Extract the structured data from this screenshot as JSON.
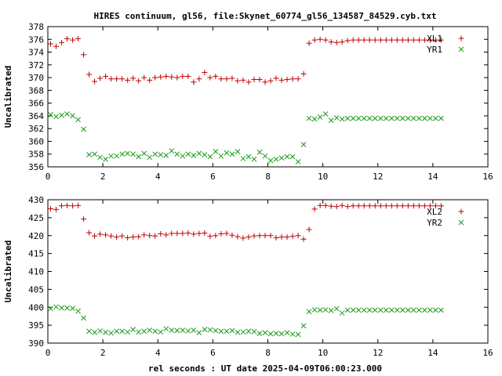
{
  "title": "HIRES continuum, gl56, file:Skynet_60774_gl56_134587_84529.cyb.txt",
  "xlabel": "rel seconds : UT date 2025-04-09T06:00:23.000",
  "colors": {
    "series_a": "#c00000",
    "series_b": "#1a9a1a",
    "axis": "#000000"
  },
  "chart_data": [
    {
      "type": "scatter",
      "ylabel": "Uncalibrated",
      "xlim": [
        0,
        16
      ],
      "ylim": [
        356,
        378
      ],
      "xticks": [
        0,
        2,
        4,
        6,
        8,
        10,
        12,
        14,
        16
      ],
      "yticks": [
        356,
        358,
        360,
        362,
        364,
        366,
        368,
        370,
        372,
        374,
        376,
        378
      ],
      "legend_position": "top-right",
      "x": [
        0.1,
        0.3,
        0.5,
        0.7,
        0.9,
        1.1,
        1.3,
        1.5,
        1.7,
        1.9,
        2.1,
        2.3,
        2.5,
        2.7,
        2.9,
        3.1,
        3.3,
        3.5,
        3.7,
        3.9,
        4.1,
        4.3,
        4.5,
        4.7,
        4.9,
        5.1,
        5.3,
        5.5,
        5.7,
        5.9,
        6.1,
        6.3,
        6.5,
        6.7,
        6.9,
        7.1,
        7.3,
        7.5,
        7.7,
        7.9,
        8.1,
        8.3,
        8.5,
        8.7,
        8.9,
        9.1,
        9.3,
        9.5,
        9.7,
        9.9,
        10.1,
        10.3,
        10.5,
        10.7,
        10.9,
        11.1,
        11.3,
        11.5,
        11.7,
        11.9,
        12.1,
        12.3,
        12.5,
        12.7,
        12.9,
        13.1,
        13.3,
        13.5,
        13.7,
        13.9,
        14.1,
        14.3
      ],
      "series": [
        {
          "name": "XL1",
          "marker": "plus",
          "values": [
            375.3,
            374.9,
            375.5,
            376.1,
            375.9,
            376.1,
            373.6,
            370.5,
            369.4,
            369.9,
            370.2,
            369.8,
            369.8,
            369.8,
            369.6,
            369.9,
            369.5,
            370.0,
            369.6,
            370.0,
            370.1,
            370.2,
            370.1,
            370.0,
            370.2,
            370.2,
            369.3,
            369.8,
            370.8,
            370.0,
            370.2,
            369.8,
            369.8,
            369.9,
            369.5,
            369.6,
            369.3,
            369.7,
            369.7,
            369.3,
            369.5,
            369.9,
            369.6,
            369.7,
            369.8,
            369.8,
            370.6,
            375.4,
            375.9,
            376.0,
            375.9,
            375.6,
            375.5,
            375.6,
            375.8,
            375.9,
            375.9,
            375.9,
            375.9,
            375.9,
            375.9,
            375.9,
            375.9,
            375.9,
            375.9,
            375.9,
            375.9,
            375.9,
            375.9,
            375.9,
            375.9,
            375.9
          ]
        },
        {
          "name": "YR1",
          "marker": "cross",
          "values": [
            364.2,
            363.9,
            364.1,
            364.3,
            364.0,
            363.4,
            361.9,
            357.9,
            358.0,
            357.5,
            357.2,
            357.7,
            357.7,
            358.0,
            358.1,
            358.0,
            357.6,
            358.1,
            357.5,
            358.0,
            357.9,
            357.8,
            358.5,
            358.0,
            357.7,
            358.0,
            357.8,
            358.1,
            357.9,
            357.6,
            358.4,
            357.7,
            358.2,
            358.0,
            358.4,
            357.3,
            357.6,
            357.2,
            358.3,
            357.7,
            357.0,
            357.2,
            357.4,
            357.6,
            357.6,
            356.8,
            359.5,
            363.6,
            363.5,
            363.8,
            364.3,
            363.3,
            363.7,
            363.5,
            363.6,
            363.6,
            363.6,
            363.6,
            363.6,
            363.6,
            363.6,
            363.6,
            363.6,
            363.6,
            363.6,
            363.6,
            363.6,
            363.6,
            363.6,
            363.6,
            363.6,
            363.6
          ]
        }
      ]
    },
    {
      "type": "scatter",
      "ylabel": "Uncalibrated",
      "xlim": [
        0,
        16
      ],
      "ylim": [
        390,
        430
      ],
      "xticks": [
        0,
        2,
        4,
        6,
        8,
        10,
        12,
        14,
        16
      ],
      "yticks": [
        390,
        395,
        400,
        405,
        410,
        415,
        420,
        425,
        430
      ],
      "legend_position": "top-right",
      "x": [
        0.1,
        0.3,
        0.5,
        0.7,
        0.9,
        1.1,
        1.3,
        1.5,
        1.7,
        1.9,
        2.1,
        2.3,
        2.5,
        2.7,
        2.9,
        3.1,
        3.3,
        3.5,
        3.7,
        3.9,
        4.1,
        4.3,
        4.5,
        4.7,
        4.9,
        5.1,
        5.3,
        5.5,
        5.7,
        5.9,
        6.1,
        6.3,
        6.5,
        6.7,
        6.9,
        7.1,
        7.3,
        7.5,
        7.7,
        7.9,
        8.1,
        8.3,
        8.5,
        8.7,
        8.9,
        9.1,
        9.3,
        9.5,
        9.7,
        9.9,
        10.1,
        10.3,
        10.5,
        10.7,
        10.9,
        11.1,
        11.3,
        11.5,
        11.7,
        11.9,
        12.1,
        12.3,
        12.5,
        12.7,
        12.9,
        13.1,
        13.3,
        13.5,
        13.7,
        13.9,
        14.1,
        14.3
      ],
      "series": [
        {
          "name": "XL2",
          "marker": "plus",
          "values": [
            427.5,
            427.3,
            428.3,
            428.4,
            428.3,
            428.4,
            424.6,
            420.8,
            419.9,
            420.4,
            420.2,
            419.9,
            419.6,
            419.9,
            419.4,
            419.6,
            419.7,
            420.2,
            420.0,
            419.9,
            420.5,
            420.2,
            420.6,
            420.6,
            420.6,
            420.7,
            420.4,
            420.6,
            420.7,
            419.8,
            420.0,
            420.5,
            420.6,
            420.1,
            419.7,
            419.3,
            419.6,
            419.9,
            420.0,
            420.0,
            420.0,
            419.4,
            419.6,
            419.6,
            419.8,
            420.0,
            419.0,
            421.7,
            427.4,
            428.4,
            428.4,
            428.2,
            428.1,
            428.4,
            428.1,
            428.3,
            428.3,
            428.3,
            428.3,
            428.3,
            428.3,
            428.3,
            428.3,
            428.3,
            428.3,
            428.3,
            428.3,
            428.3,
            428.3,
            428.3,
            428.3,
            428.3
          ]
        },
        {
          "name": "YR2",
          "marker": "cross",
          "values": [
            399.6,
            400.1,
            399.8,
            399.8,
            399.7,
            398.9,
            397.0,
            393.3,
            393.0,
            393.4,
            393.0,
            392.8,
            393.3,
            393.3,
            393.1,
            393.8,
            393.1,
            393.3,
            393.6,
            393.3,
            393.1,
            394.0,
            393.6,
            393.5,
            393.6,
            393.4,
            393.6,
            392.9,
            393.8,
            393.7,
            393.5,
            393.3,
            393.3,
            393.5,
            393.0,
            393.1,
            393.3,
            393.2,
            392.7,
            392.9,
            392.6,
            392.7,
            392.6,
            392.9,
            392.5,
            392.4,
            394.8,
            398.8,
            399.3,
            399.2,
            399.3,
            399.1,
            399.6,
            398.4,
            399.2,
            399.2,
            399.2,
            399.2,
            399.2,
            399.2,
            399.2,
            399.2,
            399.2,
            399.2,
            399.2,
            399.2,
            399.2,
            399.2,
            399.2,
            399.2,
            399.2,
            399.2
          ]
        }
      ]
    }
  ]
}
